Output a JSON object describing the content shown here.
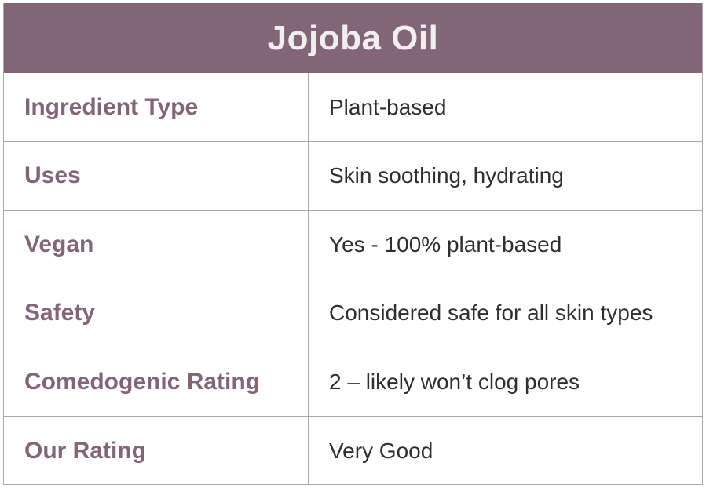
{
  "title": "Jojoba Oil",
  "colors": {
    "header_bg": "#826678",
    "header_text": "#f2eef0",
    "label_text": "#826678",
    "value_text": "#2f2f2f",
    "border": "#a8a8a8"
  },
  "rows": [
    {
      "label": "Ingredient Type",
      "value": "Plant-based"
    },
    {
      "label": "Uses",
      "value": "Skin soothing, hydrating"
    },
    {
      "label": "Vegan",
      "value": "Yes - 100% plant-based"
    },
    {
      "label": "Safety",
      "value": "Considered safe for all skin types"
    },
    {
      "label": "Comedogenic Rating",
      "value": "2 – likely won’t clog pores"
    },
    {
      "label": "Our Rating",
      "value": "Very Good"
    }
  ]
}
